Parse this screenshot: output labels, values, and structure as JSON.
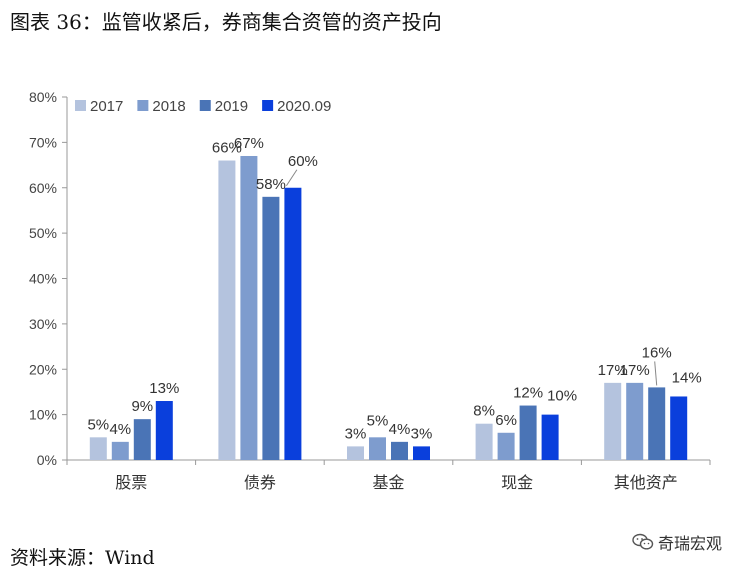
{
  "figure_title": "图表 36：监管收紧后，券商集合资管的资产投向",
  "source": "资料来源：Wind",
  "brand": {
    "name": "奇瑞宏观",
    "icon": "wechat-icon"
  },
  "chart_data": {
    "type": "bar",
    "categories": [
      "股票",
      "债券",
      "基金",
      "现金",
      "其他资产"
    ],
    "series": [
      {
        "name": "2017",
        "color": "#b4c3de",
        "values": [
          5,
          66,
          3,
          8,
          17
        ]
      },
      {
        "name": "2018",
        "color": "#7e9cce",
        "values": [
          4,
          67,
          5,
          6,
          17
        ]
      },
      {
        "name": "2019",
        "color": "#4a74b6",
        "values": [
          9,
          58,
          4,
          12,
          16
        ]
      },
      {
        "name": "2020.09",
        "color": "#0a3fdc",
        "values": [
          13,
          60,
          3,
          10,
          14
        ]
      }
    ],
    "ylim": [
      0,
      80
    ],
    "yticks": [
      "0%",
      "10%",
      "20%",
      "30%",
      "40%",
      "50%",
      "60%",
      "70%",
      "80%"
    ],
    "value_suffix": "%",
    "legend": "top-left",
    "grid": false
  }
}
